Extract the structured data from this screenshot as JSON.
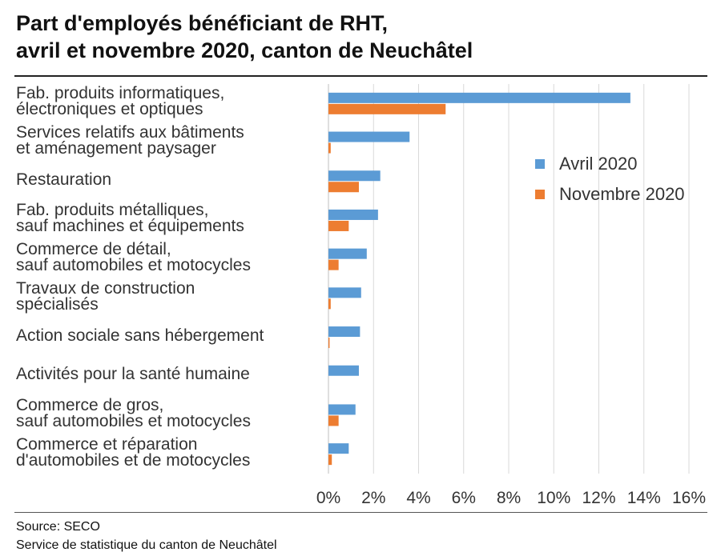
{
  "title_line1": "Part d'employés bénéficiant de RHT,",
  "title_line2": "avril et novembre 2020, canton de Neuchâtel",
  "source": "Source: SECO",
  "publisher": "Service de statistique du canton de Neuchâtel",
  "chart_data": {
    "type": "bar",
    "orientation": "horizontal",
    "categories": [
      [
        "Fab. produits informatiques,",
        "électroniques et optiques"
      ],
      [
        "Services relatifs aux bâtiments",
        "et aménagement paysager"
      ],
      [
        "Restauration"
      ],
      [
        "Fab. produits métalliques,",
        "sauf machines et équipements"
      ],
      [
        "Commerce de détail,",
        "sauf automobiles et motocycles"
      ],
      [
        "Travaux de construction",
        "spécialisés"
      ],
      [
        "Action sociale sans hébergement"
      ],
      [
        "Activités pour la santé humaine"
      ],
      [
        "Commerce de gros,",
        "sauf automobiles et motocycles"
      ],
      [
        "Commerce et réparation",
        "d'automobiles et de motocycles"
      ]
    ],
    "series": [
      {
        "name": "Avril 2020",
        "color": "#5b9bd5",
        "values": [
          13.4,
          3.6,
          2.3,
          2.2,
          1.7,
          1.45,
          1.4,
          1.35,
          1.2,
          0.9
        ]
      },
      {
        "name": "Novembre 2020",
        "color": "#ed7d31",
        "values": [
          5.2,
          0.1,
          1.35,
          0.9,
          0.45,
          0.1,
          0.05,
          0.0,
          0.45,
          0.15
        ]
      }
    ],
    "xlim": [
      0,
      16
    ],
    "xticks": [
      "0%",
      "2%",
      "4%",
      "6%",
      "8%",
      "10%",
      "12%",
      "14%",
      "16%"
    ],
    "grid": true,
    "legend_position": "right"
  }
}
